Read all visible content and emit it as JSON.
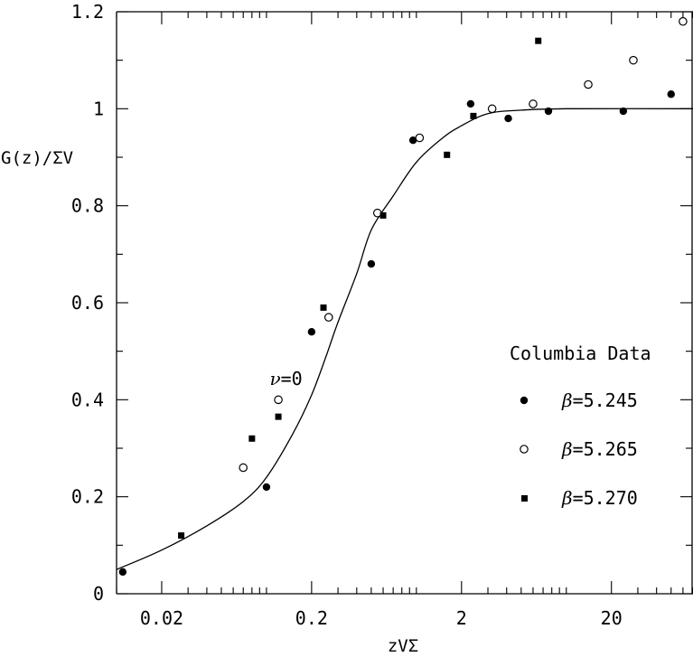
{
  "chart_data": {
    "type": "scatter",
    "xlabel": "zVΣ",
    "ylabel": "G(z)/ΣV",
    "x_scale": "log",
    "xlim": [
      0.01,
      70
    ],
    "ylim": [
      0,
      1.2
    ],
    "x_tick_labels": [
      {
        "value": 0.02,
        "label": "0.02"
      },
      {
        "value": 0.2,
        "label": "0.2"
      },
      {
        "value": 2,
        "label": "2"
      },
      {
        "value": 20,
        "label": "20"
      }
    ],
    "y_tick_labels": [
      {
        "value": 0,
        "label": "0"
      },
      {
        "value": 0.2,
        "label": "0.2"
      },
      {
        "value": 0.4,
        "label": "0.4"
      },
      {
        "value": 0.6,
        "label": "0.6"
      },
      {
        "value": 0.8,
        "label": "0.8"
      },
      {
        "value": 1,
        "label": "1"
      },
      {
        "value": 1.2,
        "label": "1.2"
      }
    ],
    "curve": {
      "label_symbol": "ν",
      "label_value": "=0",
      "label_anchor": {
        "x": 0.105,
        "y": 0.43
      },
      "points": [
        {
          "x": 0.01,
          "y": 0.05
        },
        {
          "x": 0.02,
          "y": 0.09
        },
        {
          "x": 0.04,
          "y": 0.14
        },
        {
          "x": 0.07,
          "y": 0.19
        },
        {
          "x": 0.1,
          "y": 0.24
        },
        {
          "x": 0.15,
          "y": 0.33
        },
        {
          "x": 0.2,
          "y": 0.41
        },
        {
          "x": 0.25,
          "y": 0.49
        },
        {
          "x": 0.3,
          "y": 0.56
        },
        {
          "x": 0.4,
          "y": 0.66
        },
        {
          "x": 0.5,
          "y": 0.75
        },
        {
          "x": 0.7,
          "y": 0.82
        },
        {
          "x": 1.0,
          "y": 0.89
        },
        {
          "x": 1.5,
          "y": 0.94
        },
        {
          "x": 2.0,
          "y": 0.965
        },
        {
          "x": 3.0,
          "y": 0.99
        },
        {
          "x": 5.0,
          "y": 0.997
        },
        {
          "x": 10,
          "y": 1.0
        },
        {
          "x": 70,
          "y": 1.0
        }
      ]
    },
    "legend_title": "Columbia Data",
    "legend_position": "right",
    "series": [
      {
        "name": "β=5.245",
        "symbol": "β",
        "value_text": "=5.245",
        "marker": "filled-circle",
        "points": [
          {
            "x": 0.011,
            "y": 0.045
          },
          {
            "x": 0.1,
            "y": 0.22
          },
          {
            "x": 0.2,
            "y": 0.54
          },
          {
            "x": 0.5,
            "y": 0.68
          },
          {
            "x": 0.95,
            "y": 0.935
          },
          {
            "x": 2.3,
            "y": 1.01
          },
          {
            "x": 4.1,
            "y": 0.98
          },
          {
            "x": 7.6,
            "y": 0.995
          },
          {
            "x": 24,
            "y": 0.995
          },
          {
            "x": 50,
            "y": 1.03
          }
        ]
      },
      {
        "name": "β=5.265",
        "symbol": "β",
        "value_text": "=5.265",
        "marker": "open-circle",
        "points": [
          {
            "x": 0.07,
            "y": 0.26
          },
          {
            "x": 0.12,
            "y": 0.4
          },
          {
            "x": 0.26,
            "y": 0.57
          },
          {
            "x": 0.55,
            "y": 0.785
          },
          {
            "x": 1.05,
            "y": 0.94
          },
          {
            "x": 3.2,
            "y": 1.0
          },
          {
            "x": 6.0,
            "y": 1.01
          },
          {
            "x": 14,
            "y": 1.05
          },
          {
            "x": 28,
            "y": 1.1
          },
          {
            "x": 60,
            "y": 1.18
          }
        ]
      },
      {
        "name": "β=5.270",
        "symbol": "β",
        "value_text": "=5.270",
        "marker": "filled-square",
        "points": [
          {
            "x": 0.027,
            "y": 0.12
          },
          {
            "x": 0.08,
            "y": 0.32
          },
          {
            "x": 0.12,
            "y": 0.365
          },
          {
            "x": 0.24,
            "y": 0.59
          },
          {
            "x": 0.6,
            "y": 0.78
          },
          {
            "x": 1.6,
            "y": 0.905
          },
          {
            "x": 2.4,
            "y": 0.985
          },
          {
            "x": 6.5,
            "y": 1.14
          }
        ]
      }
    ]
  }
}
